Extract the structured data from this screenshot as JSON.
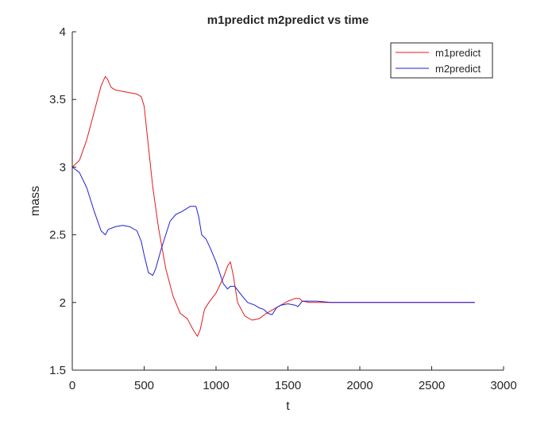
{
  "chart_data": {
    "type": "line",
    "title": "m1predict m2predict vs time",
    "xlabel": "t",
    "ylabel": "mass",
    "xlim": [
      0,
      3000
    ],
    "ylim": [
      1.5,
      4
    ],
    "xticks": [
      "0",
      "500",
      "1000",
      "1500",
      "2000",
      "2500",
      "3000"
    ],
    "yticks": [
      "1.5",
      "2",
      "2.5",
      "3",
      "3.5",
      "4"
    ],
    "grid": false,
    "legend_position": "top-right",
    "series": [
      {
        "name": "m1predict",
        "color": "#e31a1c",
        "x": [
          0,
          50,
          100,
          150,
          200,
          230,
          245,
          270,
          300,
          350,
          400,
          450,
          480,
          500,
          520,
          560,
          600,
          650,
          700,
          750,
          800,
          840,
          870,
          890,
          920,
          950,
          1000,
          1050,
          1080,
          1100,
          1120,
          1150,
          1200,
          1250,
          1300,
          1350,
          1400,
          1450,
          1500,
          1550,
          1580,
          1600,
          1650,
          1700,
          1800,
          2000,
          2200,
          2400,
          2600,
          2800
        ],
        "y": [
          3.0,
          3.05,
          3.2,
          3.4,
          3.6,
          3.67,
          3.65,
          3.59,
          3.57,
          3.56,
          3.55,
          3.54,
          3.52,
          3.45,
          3.25,
          2.85,
          2.55,
          2.25,
          2.05,
          1.92,
          1.88,
          1.8,
          1.75,
          1.8,
          1.95,
          2.0,
          2.07,
          2.18,
          2.27,
          2.3,
          2.2,
          2.0,
          1.9,
          1.87,
          1.88,
          1.92,
          1.95,
          1.98,
          2.01,
          2.03,
          2.03,
          2.01,
          2.0,
          2.0,
          2.0,
          2.0,
          2.0,
          2.0,
          2.0,
          2.0
        ]
      },
      {
        "name": "m2predict",
        "color": "#1f1fd6",
        "x": [
          0,
          50,
          100,
          150,
          200,
          230,
          250,
          300,
          350,
          400,
          450,
          480,
          500,
          530,
          560,
          580,
          620,
          680,
          720,
          760,
          820,
          860,
          880,
          900,
          930,
          960,
          1000,
          1050,
          1080,
          1100,
          1130,
          1180,
          1220,
          1270,
          1300,
          1330,
          1360,
          1390,
          1420,
          1450,
          1500,
          1550,
          1570,
          1600,
          1650,
          1700,
          1800,
          2000,
          2200,
          2400,
          2600,
          2800
        ],
        "y": [
          3.0,
          2.96,
          2.85,
          2.68,
          2.53,
          2.5,
          2.54,
          2.56,
          2.57,
          2.56,
          2.53,
          2.45,
          2.35,
          2.22,
          2.2,
          2.25,
          2.4,
          2.6,
          2.65,
          2.67,
          2.71,
          2.71,
          2.63,
          2.5,
          2.47,
          2.4,
          2.3,
          2.14,
          2.1,
          2.12,
          2.12,
          2.05,
          2.0,
          1.98,
          1.96,
          1.95,
          1.92,
          1.91,
          1.96,
          1.98,
          1.99,
          1.98,
          1.97,
          2.01,
          2.01,
          2.01,
          2.0,
          2.0,
          2.0,
          2.0,
          2.0,
          2.0
        ]
      }
    ]
  }
}
